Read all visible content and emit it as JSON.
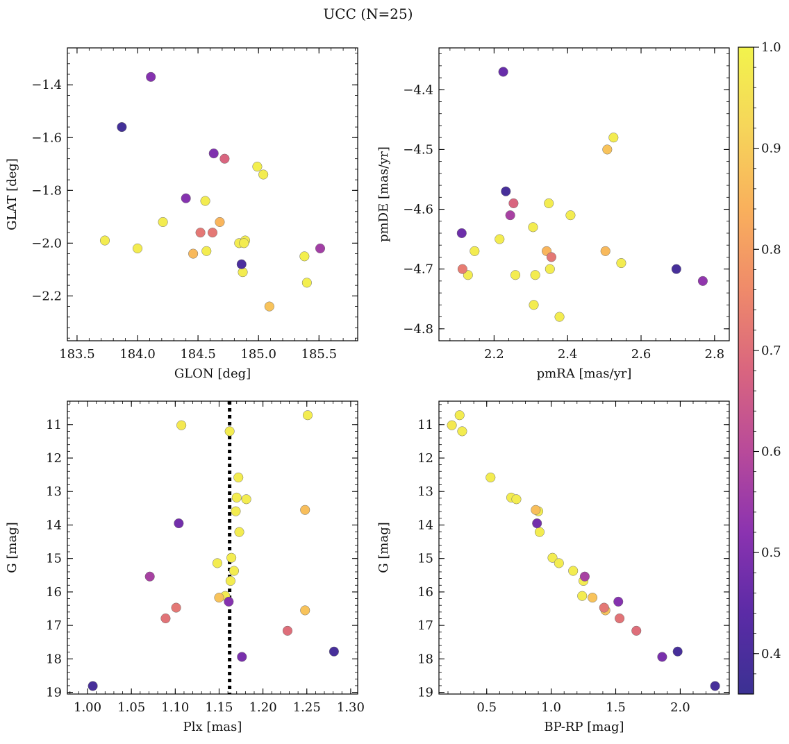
{
  "figure": {
    "title": "UCC (N=25)"
  },
  "colorbar": {
    "vmin": 0.36,
    "vmax": 1.0,
    "ticks": [
      0.4,
      0.5,
      0.6,
      0.7,
      0.8,
      0.9,
      1.0
    ],
    "tick_labels": [
      "0.4",
      "0.5",
      "0.6",
      "0.7",
      "0.8",
      "0.9",
      "1.0"
    ],
    "colormap": "plasma",
    "stops": [
      "#3b3193",
      "#5b2ba6",
      "#8b33b0",
      "#b84a9a",
      "#d9657f",
      "#ef8a6a",
      "#f9b05c",
      "#f6d55a",
      "#f2f34c"
    ]
  },
  "chart_data": [
    {
      "type": "scatter",
      "id": "glon-glat",
      "xlabel": "GLON [deg]",
      "ylabel": "GLAT [deg]",
      "xlim": [
        183.42,
        185.82
      ],
      "ylim": [
        -2.37,
        -1.26
      ],
      "y_inverted": false,
      "xticks": [
        183.5,
        184.0,
        184.5,
        185.0,
        185.5
      ],
      "xtick_labels": [
        "183.5",
        "184.0",
        "184.5",
        "185.0",
        "185.5"
      ],
      "yticks": [
        -1.4,
        -1.6,
        -1.8,
        -2.0,
        -2.2
      ],
      "ytick_labels": [
        "−1.4",
        "−1.6",
        "−1.8",
        "−2.0",
        "−2.2"
      ],
      "x": [
        184.11,
        183.87,
        184.63,
        184.72,
        184.99,
        185.04,
        184.4,
        184.56,
        184.21,
        184.68,
        184.52,
        184.62,
        183.73,
        184.0,
        184.84,
        184.89,
        184.46,
        184.57,
        184.86,
        184.87,
        185.51,
        185.38,
        185.4,
        185.09,
        184.88
      ],
      "y": [
        -1.37,
        -1.56,
        -1.66,
        -1.68,
        -1.71,
        -1.74,
        -1.83,
        -1.84,
        -1.92,
        -1.92,
        -1.96,
        -1.96,
        -1.99,
        -2.02,
        -2.0,
        -1.99,
        -2.04,
        -2.03,
        -2.08,
        -2.11,
        -2.02,
        -2.05,
        -2.15,
        -2.24,
        -2.0
      ],
      "color_value": [
        0.51,
        0.38,
        0.5,
        0.68,
        0.99,
        0.98,
        0.51,
        0.98,
        0.98,
        0.85,
        0.72,
        0.72,
        0.98,
        0.98,
        0.98,
        0.98,
        0.86,
        0.98,
        0.4,
        0.98,
        0.56,
        0.99,
        0.99,
        0.88,
        0.98
      ]
    },
    {
      "type": "scatter",
      "id": "pmra-pmde",
      "xlabel": "pmRA [mas/yr]",
      "ylabel": "pmDE [mas/yr]",
      "xlim": [
        2.05,
        2.84
      ],
      "ylim": [
        -4.82,
        -4.33
      ],
      "y_inverted": false,
      "xticks": [
        2.2,
        2.4,
        2.6,
        2.8
      ],
      "xtick_labels": [
        "2.2",
        "2.4",
        "2.6",
        "2.8"
      ],
      "yticks": [
        -4.4,
        -4.5,
        -4.6,
        -4.7,
        -4.8
      ],
      "ytick_labels": [
        "−4.4",
        "−4.5",
        "−4.6",
        "−4.7",
        "−4.8"
      ],
      "x": [
        2.225,
        2.525,
        2.508,
        2.232,
        2.253,
        2.349,
        2.244,
        2.408,
        2.306,
        2.112,
        2.215,
        2.147,
        2.343,
        2.356,
        2.503,
        2.546,
        2.352,
        2.114,
        2.129,
        2.258,
        2.312,
        2.696,
        2.768,
        2.308,
        2.378
      ],
      "y": [
        -4.37,
        -4.48,
        -4.5,
        -4.57,
        -4.59,
        -4.59,
        -4.61,
        -4.61,
        -4.63,
        -4.64,
        -4.65,
        -4.67,
        -4.67,
        -4.68,
        -4.67,
        -4.69,
        -4.7,
        -4.7,
        -4.71,
        -4.71,
        -4.71,
        -4.7,
        -4.72,
        -4.76,
        -4.78
      ],
      "color_value": [
        0.46,
        0.98,
        0.88,
        0.39,
        0.68,
        0.98,
        0.57,
        0.98,
        0.98,
        0.47,
        0.98,
        0.98,
        0.85,
        0.72,
        0.86,
        0.98,
        0.98,
        0.73,
        0.98,
        0.98,
        0.98,
        0.39,
        0.53,
        0.98,
        0.98
      ]
    },
    {
      "type": "scatter",
      "id": "plx-g",
      "xlabel": "Plx [mas]",
      "ylabel": "G [mag]",
      "xlim": [
        0.977,
        1.308
      ],
      "ylim": [
        10.3,
        19.05
      ],
      "y_inverted": true,
      "xticks": [
        1.0,
        1.05,
        1.1,
        1.15,
        1.2,
        1.25,
        1.3
      ],
      "xtick_labels": [
        "1.00",
        "1.05",
        "1.10",
        "1.15",
        "1.20",
        "1.25",
        "1.30"
      ],
      "yticks": [
        11,
        12,
        13,
        14,
        15,
        16,
        17,
        18,
        19
      ],
      "ytick_labels": [
        "11",
        "12",
        "13",
        "14",
        "15",
        "16",
        "17",
        "18",
        "19"
      ],
      "vline": 1.162,
      "x": [
        1.251,
        1.107,
        1.162,
        1.172,
        1.17,
        1.181,
        1.169,
        1.248,
        1.104,
        1.173,
        1.164,
        1.148,
        1.167,
        1.071,
        1.163,
        1.157,
        1.15,
        1.161,
        1.248,
        1.101,
        1.089,
        1.228,
        1.176,
        1.281,
        1.006
      ],
      "y": [
        10.72,
        11.02,
        11.2,
        12.58,
        13.18,
        13.23,
        13.59,
        13.55,
        13.95,
        14.21,
        14.98,
        15.14,
        15.37,
        15.54,
        15.67,
        16.12,
        16.17,
        16.29,
        16.55,
        16.47,
        16.79,
        17.16,
        17.94,
        17.78,
        18.81
      ],
      "color_value": [
        0.98,
        0.97,
        0.98,
        0.98,
        0.98,
        0.98,
        0.98,
        0.87,
        0.48,
        0.98,
        0.98,
        0.98,
        0.98,
        0.57,
        0.98,
        0.98,
        0.88,
        0.51,
        0.88,
        0.72,
        0.71,
        0.7,
        0.49,
        0.39,
        0.39
      ]
    },
    {
      "type": "scatter",
      "id": "bprp-g",
      "xlabel": "BP-RP [mag]",
      "ylabel": "G [mag]",
      "xlim": [
        0.13,
        2.38
      ],
      "ylim": [
        10.3,
        19.05
      ],
      "y_inverted": true,
      "xticks": [
        0.5,
        1.0,
        1.5,
        2.0
      ],
      "xtick_labels": [
        "0.5",
        "1.0",
        "1.5",
        "2.0"
      ],
      "yticks": [
        11,
        12,
        13,
        14,
        15,
        16,
        17,
        18,
        19
      ],
      "ytick_labels": [
        "11",
        "12",
        "13",
        "14",
        "15",
        "16",
        "17",
        "18",
        "19"
      ],
      "x": [
        0.29,
        0.23,
        0.31,
        0.53,
        0.69,
        0.73,
        0.88,
        0.9,
        0.89,
        0.91,
        1.01,
        1.06,
        1.17,
        1.26,
        1.25,
        1.24,
        1.32,
        1.52,
        1.41,
        1.42,
        1.53,
        1.66,
        1.86,
        1.98,
        2.27
      ],
      "y": [
        10.72,
        11.02,
        11.2,
        12.58,
        13.18,
        13.23,
        13.55,
        13.59,
        13.95,
        14.21,
        14.98,
        15.14,
        15.37,
        15.54,
        15.67,
        16.12,
        16.17,
        16.29,
        16.47,
        16.55,
        16.79,
        17.16,
        17.94,
        17.78,
        18.81
      ],
      "color_value": [
        0.98,
        0.97,
        0.98,
        0.98,
        0.98,
        0.98,
        0.87,
        0.98,
        0.48,
        0.98,
        0.98,
        0.98,
        0.98,
        0.57,
        0.98,
        0.98,
        0.88,
        0.51,
        0.72,
        0.88,
        0.71,
        0.7,
        0.49,
        0.39,
        0.39
      ]
    }
  ]
}
